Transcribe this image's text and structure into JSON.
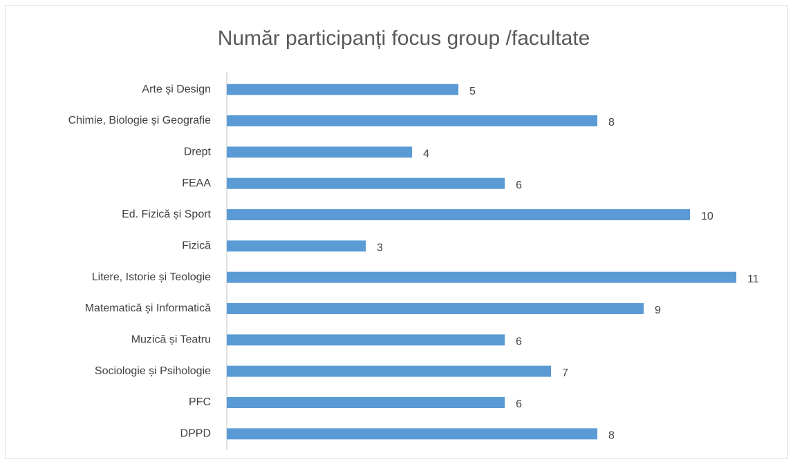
{
  "chart_data": {
    "type": "bar",
    "orientation": "horizontal",
    "title": "Număr participanți focus group /facultate",
    "categories": [
      "Arte și Design",
      "Chimie, Biologie și Geografie",
      "Drept",
      "FEAA",
      "Ed. Fizică și Sport",
      "Fizică",
      "Litere, Istorie și Teologie",
      "Matematică și Informatică",
      "Muzică și Teatru",
      "Sociologie și Psihologie",
      "PFC",
      "DPPD"
    ],
    "values": [
      5,
      8,
      4,
      6,
      10,
      3,
      11,
      9,
      6,
      7,
      6,
      8
    ],
    "color": "#5b9bd5"
  }
}
